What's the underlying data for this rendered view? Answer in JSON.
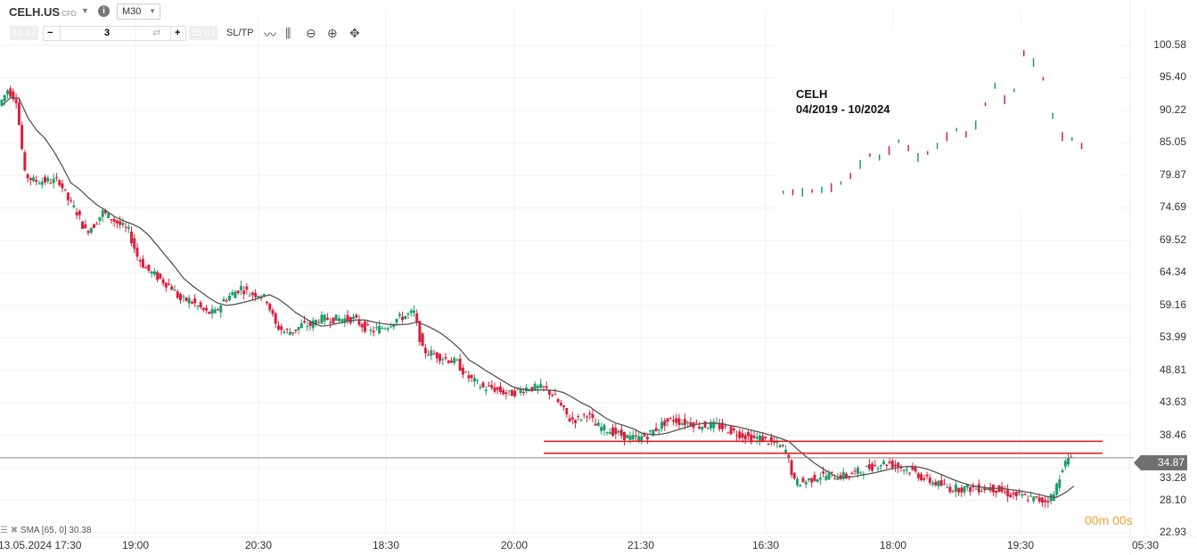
{
  "header": {
    "symbol": "CELH.US",
    "type": "CFD",
    "timeframe": "M30",
    "bid": "34.87",
    "ask": "35.01",
    "quantity": "3",
    "sltp": "SL/TP",
    "icons": [
      "info-icon",
      "chevron-down-icon",
      "minus-icon",
      "swap-icon",
      "plus-icon",
      "line-chart-icon",
      "candles-icon",
      "zoom-out-icon",
      "zoom-in-icon",
      "move-icon"
    ]
  },
  "chart_data": {
    "type": "candlestick",
    "y_ticks": [
      "100.58",
      "95.40",
      "90.22",
      "85.05",
      "79.87",
      "74.69",
      "69.52",
      "64.34",
      "59.16",
      "53.99",
      "48.81",
      "43.63",
      "38.46",
      "33.28",
      "28.10",
      "22.93"
    ],
    "ylim": [
      22.93,
      100.58
    ],
    "x_ticks": [
      "13.05.2024 17:30",
      "19:00",
      "20:30",
      "18:30",
      "20:00",
      "21:30",
      "16:30",
      "18:00",
      "19:30",
      "05:30"
    ],
    "closes": [
      91,
      93.5,
      92,
      80,
      79,
      79,
      79,
      79,
      76,
      74,
      71,
      72,
      74,
      73,
      72,
      71,
      67,
      65,
      64,
      63,
      62,
      60,
      60,
      59,
      58,
      58,
      60,
      61,
      62,
      61,
      61,
      60,
      56,
      55,
      55,
      56,
      56,
      57,
      57,
      57,
      57,
      57,
      56,
      55,
      55.5,
      56,
      57,
      57.5,
      58,
      52,
      51.5,
      51,
      50.5,
      50,
      48,
      47,
      46,
      46,
      45.5,
      45,
      45.5,
      46,
      46,
      46,
      45,
      43,
      41,
      41,
      42,
      40,
      39.5,
      39,
      38.5,
      38,
      38,
      38.5,
      39.5,
      40.5,
      41,
      40.5,
      40.5,
      40,
      40,
      40,
      39.5,
      39,
      38.5,
      38,
      38,
      37.5,
      37,
      36,
      31,
      31,
      31.5,
      32,
      32,
      32,
      32,
      32.5,
      33,
      33.5,
      34,
      34,
      33.5,
      33,
      32.5,
      31.5,
      31,
      30.5,
      30,
      30,
      30,
      30,
      30,
      30,
      29.5,
      29,
      28.8,
      28.5,
      28.2,
      28,
      29,
      33.5,
      35
    ],
    "sma_label": "SMA [65, 0] 30.38",
    "current_price": "34.87",
    "levels": [
      37.5,
      35.6
    ],
    "timer": "00m 00s",
    "colors": {
      "up": "#1a9e6c",
      "down": "#d8203c",
      "sma": "#555555",
      "level": "#e8151a",
      "price_line": "#888888"
    }
  },
  "inset": {
    "title": "CELH",
    "range": "04/2019 - 10/2024"
  }
}
